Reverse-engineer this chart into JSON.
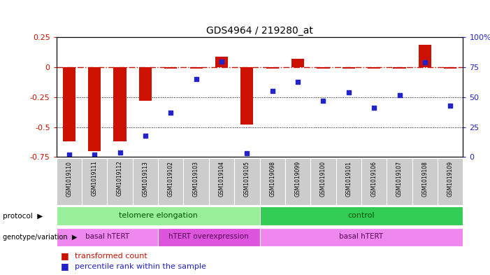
{
  "title": "GDS4964 / 219280_at",
  "samples": [
    "GSM1019110",
    "GSM1019111",
    "GSM1019112",
    "GSM1019113",
    "GSM1019102",
    "GSM1019103",
    "GSM1019104",
    "GSM1019105",
    "GSM1019098",
    "GSM1019099",
    "GSM1019100",
    "GSM1019101",
    "GSM1019106",
    "GSM1019107",
    "GSM1019108",
    "GSM1019109"
  ],
  "bar_values": [
    -0.62,
    -0.7,
    -0.62,
    -0.28,
    -0.01,
    -0.01,
    0.09,
    -0.48,
    -0.01,
    0.07,
    -0.01,
    -0.01,
    -0.01,
    -0.01,
    0.19,
    -0.01
  ],
  "percentile_values": [
    2,
    2,
    4,
    18,
    37,
    65,
    80,
    3,
    55,
    63,
    47,
    54,
    41,
    52,
    79,
    43
  ],
  "ylim_left": [
    -0.75,
    0.25
  ],
  "ylim_right": [
    0,
    100
  ],
  "dotted_lines": [
    -0.25,
    -0.5
  ],
  "bar_color": "#CC1100",
  "dot_color": "#2222CC",
  "hline_color": "#CC1100",
  "left_tick_color": "#CC1100",
  "right_tick_color": "#2222CC",
  "protocol_groups": [
    {
      "label": "telomere elongation",
      "start": 0,
      "end": 7,
      "color": "#99EE99"
    },
    {
      "label": "control",
      "start": 8,
      "end": 15,
      "color": "#33CC55"
    }
  ],
  "genotype_groups": [
    {
      "label": "basal hTERT",
      "start": 0,
      "end": 3,
      "color": "#EE88EE"
    },
    {
      "label": "hTERT overexpression",
      "start": 4,
      "end": 7,
      "color": "#DD55DD"
    },
    {
      "label": "basal hTERT",
      "start": 8,
      "end": 15,
      "color": "#EE88EE"
    }
  ],
  "legend_entries": [
    {
      "label": "transformed count",
      "color": "#CC1100"
    },
    {
      "label": "percentile rank within the sample",
      "color": "#2222CC"
    }
  ],
  "protocol_label": "protocol",
  "genotype_label": "genotype/variation"
}
